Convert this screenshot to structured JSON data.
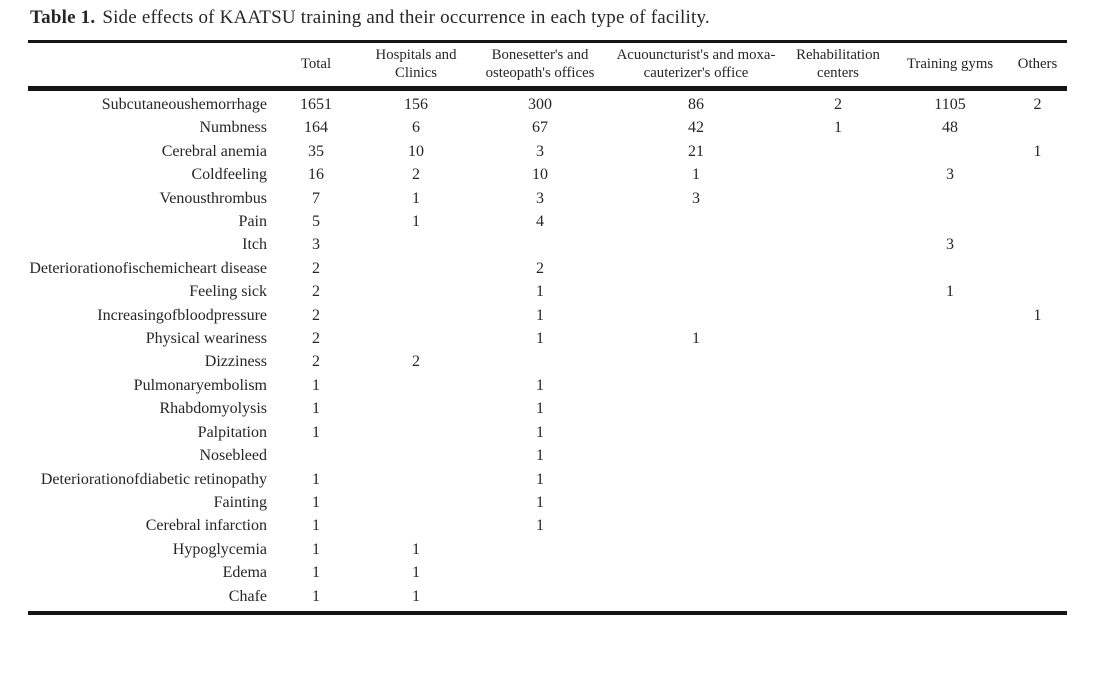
{
  "caption": {
    "label": "Table 1.",
    "text": "Side effects of KAATSU training and their occurrence in each type of facility."
  },
  "table": {
    "columns": [
      "Total",
      "Hospitals and Clinics",
      "Bonesetter's and osteopath's offices",
      "Acuouncturist's and moxa-cauterizer's office",
      "Rehabilitation centers",
      "Training gyms",
      "Others"
    ],
    "rows": [
      {
        "label": "Subcutaneoushemorrhage",
        "values": [
          "1651",
          "156",
          "300",
          "86",
          "2",
          "1105",
          "2"
        ]
      },
      {
        "label": "Numbness",
        "values": [
          "164",
          "6",
          "67",
          "42",
          "1",
          "48",
          ""
        ]
      },
      {
        "label": "Cerebral anemia",
        "values": [
          "35",
          "10",
          "3",
          "21",
          "",
          "",
          "1"
        ]
      },
      {
        "label": "Coldfeeling",
        "values": [
          "16",
          "2",
          "10",
          "1",
          "",
          "3",
          ""
        ]
      },
      {
        "label": "Venousthrombus",
        "values": [
          "7",
          "1",
          "3",
          "3",
          "",
          "",
          ""
        ]
      },
      {
        "label": "Pain",
        "values": [
          "5",
          "1",
          "4",
          "",
          "",
          "",
          ""
        ]
      },
      {
        "label": "Itch",
        "values": [
          "3",
          "",
          "",
          "",
          "",
          "3",
          ""
        ]
      },
      {
        "label": "Deteriorationofischemicheart disease",
        "values": [
          "2",
          "",
          "2",
          "",
          "",
          "",
          ""
        ]
      },
      {
        "label": "Feeling sick",
        "values": [
          "2",
          "",
          "1",
          "",
          "",
          "1",
          ""
        ]
      },
      {
        "label": "Increasingofbloodpressure",
        "values": [
          "2",
          "",
          "1",
          "",
          "",
          "",
          "1"
        ]
      },
      {
        "label": "Physical weariness",
        "values": [
          "2",
          "",
          "1",
          "1",
          "",
          "",
          ""
        ]
      },
      {
        "label": "Dizziness",
        "values": [
          "2",
          "2",
          "",
          "",
          "",
          "",
          ""
        ]
      },
      {
        "label": "Pulmonaryembolism",
        "values": [
          "1",
          "",
          "1",
          "",
          "",
          "",
          ""
        ]
      },
      {
        "label": "Rhabdomyolysis",
        "values": [
          "1",
          "",
          "1",
          "",
          "",
          "",
          ""
        ]
      },
      {
        "label": "Palpitation",
        "values": [
          "1",
          "",
          "1",
          "",
          "",
          "",
          ""
        ]
      },
      {
        "label": "Nosebleed",
        "values": [
          "",
          "",
          "1",
          "",
          "",
          "",
          ""
        ]
      },
      {
        "label": "Deteriorationofdiabetic retinopathy",
        "values": [
          "1",
          "",
          "1",
          "",
          "",
          "",
          ""
        ]
      },
      {
        "label": "Fainting",
        "values": [
          "1",
          "",
          "1",
          "",
          "",
          "",
          ""
        ]
      },
      {
        "label": "Cerebral infarction",
        "values": [
          "1",
          "",
          "1",
          "",
          "",
          "",
          ""
        ]
      },
      {
        "label": "Hypoglycemia",
        "values": [
          "1",
          "1",
          "",
          "",
          "",
          "",
          ""
        ]
      },
      {
        "label": "Edema",
        "values": [
          "1",
          "1",
          "",
          "",
          "",
          "",
          ""
        ]
      },
      {
        "label": "Chafe",
        "values": [
          "1",
          "1",
          "",
          "",
          "",
          "",
          ""
        ]
      }
    ]
  }
}
